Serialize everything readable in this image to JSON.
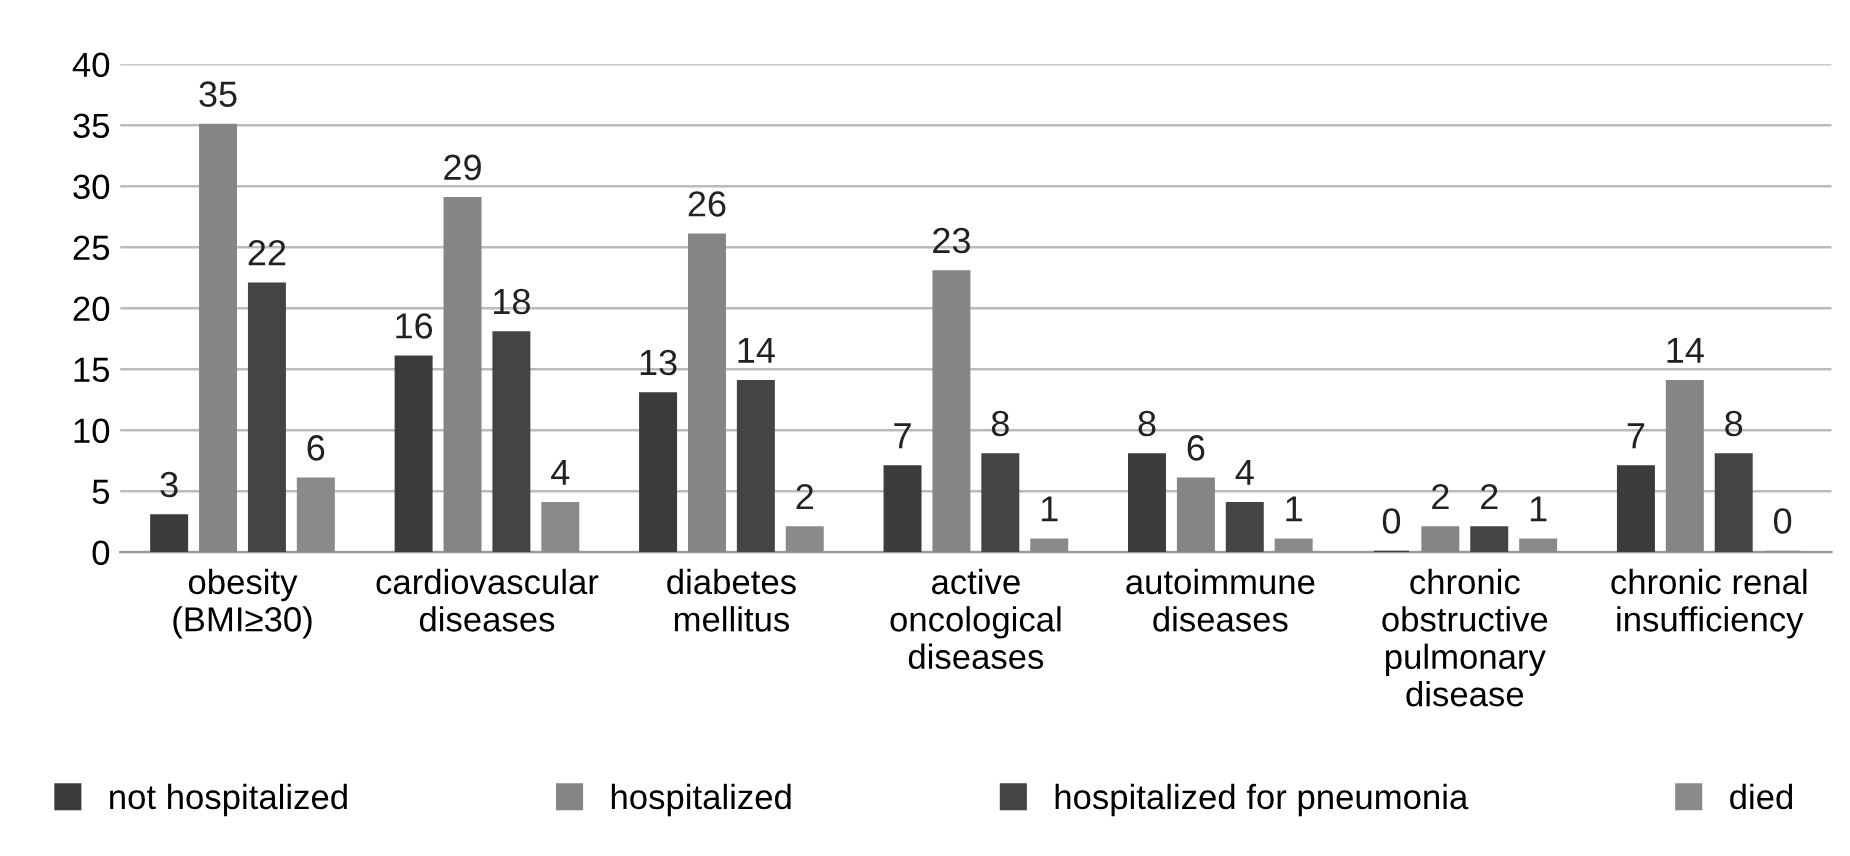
{
  "chart_data": {
    "type": "bar",
    "categories": [
      "obesity\n(BMI≥30)",
      "cardiovascular\ndiseases",
      "diabetes\nmellitus",
      "active\noncological\ndiseases",
      "autoimmune\ndiseases",
      "chronic\nobstructive\npulmonary\ndisease",
      "chronic renal\ninsufficiency"
    ],
    "series": [
      {
        "name": "not hospitalized",
        "color": "#3c3c3c",
        "values": [
          3,
          16,
          13,
          7,
          8,
          0,
          7
        ]
      },
      {
        "name": "hospitalized",
        "color": "#858585",
        "values": [
          35,
          29,
          26,
          23,
          6,
          2,
          14
        ]
      },
      {
        "name": "hospitalized for pneumonia",
        "color": "#444444",
        "values": [
          22,
          18,
          14,
          8,
          4,
          2,
          8
        ]
      },
      {
        "name": "died",
        "color": "#8a8a8a",
        "values": [
          6,
          4,
          2,
          1,
          1,
          1,
          0
        ]
      }
    ],
    "ylim": [
      0,
      40
    ],
    "yticks": [
      0,
      5,
      10,
      15,
      20,
      25,
      30,
      35,
      40
    ],
    "grid": "y",
    "data_labels": true,
    "legend": "bottom"
  }
}
